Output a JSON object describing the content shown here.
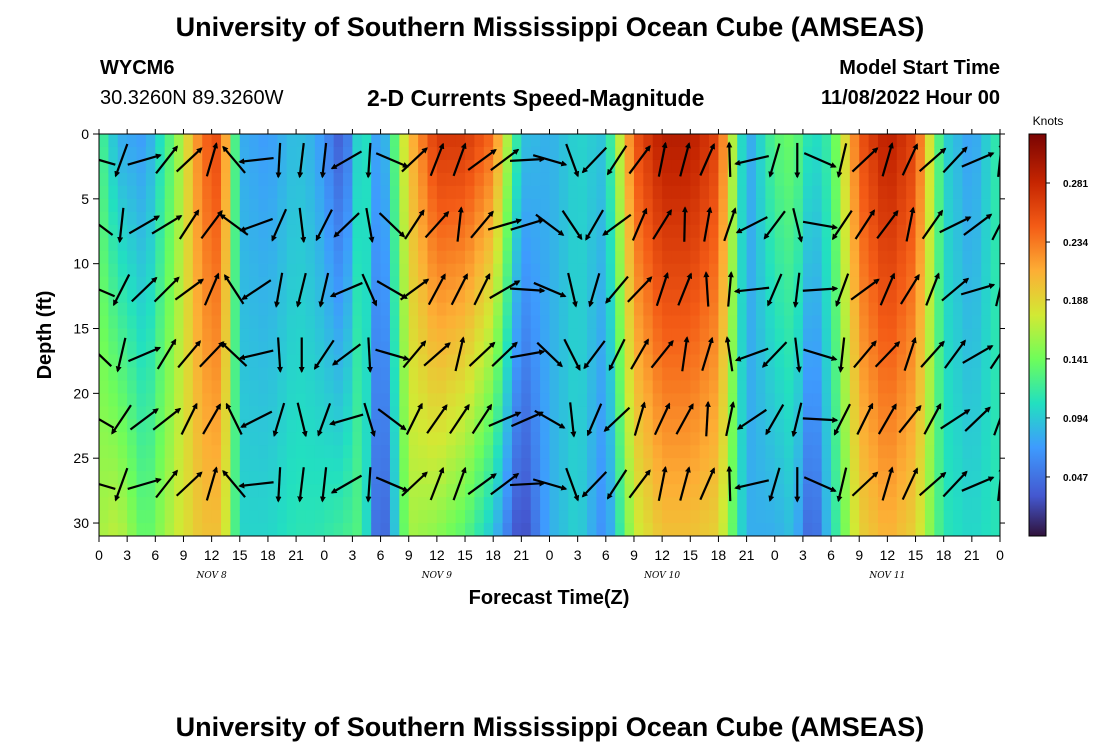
{
  "page": {
    "title_top": "University of Southern Mississippi Ocean Cube (AMSEAS)",
    "title_bottom": "University of Southern Mississippi Ocean Cube (AMSEAS)",
    "station_id": "WYCM6",
    "station_coords": "30.3260N  89.3260W",
    "model_label": "Model Start Time",
    "model_time": "11/08/2022 Hour 00"
  },
  "chart_data": {
    "type": "heatmap",
    "title": "2-D Currents Speed-Magnitude",
    "xlabel": "Forecast Time(Z)",
    "ylabel": "Depth (ft)",
    "x_range_hours": [
      0,
      96
    ],
    "y_range_ft": [
      0,
      31
    ],
    "x_tick_labels": [
      "0",
      "3",
      "6",
      "9",
      "12",
      "15",
      "18",
      "21",
      "0",
      "3",
      "6",
      "9",
      "12",
      "15",
      "18",
      "21",
      "0",
      "3",
      "6",
      "9",
      "12",
      "15",
      "18",
      "21",
      "0",
      "3",
      "6",
      "9",
      "12",
      "15",
      "18",
      "21",
      "0"
    ],
    "y_ticks": [
      0,
      5,
      10,
      15,
      20,
      25,
      30
    ],
    "y_tick_labels": [
      "0",
      "5",
      "10",
      "15",
      "20",
      "25",
      "30"
    ],
    "day_labels": [
      {
        "hour": 12,
        "label": "NOV 8"
      },
      {
        "hour": 36,
        "label": "NOV 9"
      },
      {
        "hour": 60,
        "label": "NOV 10"
      },
      {
        "hour": 84,
        "label": "NOV 11"
      }
    ],
    "colorbar": {
      "unit": "Knots",
      "min": 0.0,
      "max": 0.32,
      "tick_values": [
        0.047,
        0.094,
        0.141,
        0.188,
        0.234,
        0.281
      ],
      "tick_labels": [
        "0.047",
        "0.094",
        "0.141",
        "0.188",
        "0.234",
        "0.281"
      ]
    },
    "speed_profile_by_hour": [
      {
        "hour": 0,
        "surface": 0.13,
        "bottom": 0.16
      },
      {
        "hour": 2,
        "surface": 0.08,
        "bottom": 0.17
      },
      {
        "hour": 5,
        "surface": 0.07,
        "bottom": 0.13
      },
      {
        "hour": 8,
        "surface": 0.14,
        "bottom": 0.17
      },
      {
        "hour": 11,
        "surface": 0.24,
        "bottom": 0.2
      },
      {
        "hour": 13,
        "surface": 0.26,
        "bottom": 0.2
      },
      {
        "hour": 15,
        "surface": 0.08,
        "bottom": 0.1
      },
      {
        "hour": 18,
        "surface": 0.07,
        "bottom": 0.1
      },
      {
        "hour": 21,
        "surface": 0.09,
        "bottom": 0.11
      },
      {
        "hour": 23,
        "surface": 0.08,
        "bottom": 0.11
      },
      {
        "hour": 26,
        "surface": 0.03,
        "bottom": 0.12
      },
      {
        "hour": 28,
        "surface": 0.12,
        "bottom": 0.13
      },
      {
        "hour": 30,
        "surface": 0.06,
        "bottom": 0.02
      },
      {
        "hour": 33,
        "surface": 0.2,
        "bottom": 0.16
      },
      {
        "hour": 36,
        "surface": 0.27,
        "bottom": 0.15
      },
      {
        "hour": 39,
        "surface": 0.27,
        "bottom": 0.13
      },
      {
        "hour": 42,
        "surface": 0.24,
        "bottom": 0.09
      },
      {
        "hour": 45,
        "surface": 0.09,
        "bottom": 0.02
      },
      {
        "hour": 48,
        "surface": 0.08,
        "bottom": 0.08
      },
      {
        "hour": 51,
        "surface": 0.1,
        "bottom": 0.1
      },
      {
        "hour": 54,
        "surface": 0.09,
        "bottom": 0.06
      },
      {
        "hour": 57,
        "surface": 0.25,
        "bottom": 0.17
      },
      {
        "hour": 60,
        "surface": 0.29,
        "bottom": 0.2
      },
      {
        "hour": 63,
        "surface": 0.29,
        "bottom": 0.2
      },
      {
        "hour": 66,
        "surface": 0.26,
        "bottom": 0.19
      },
      {
        "hour": 69,
        "surface": 0.07,
        "bottom": 0.08
      },
      {
        "hour": 72,
        "surface": 0.13,
        "bottom": 0.08
      },
      {
        "hour": 74,
        "surface": 0.14,
        "bottom": 0.09
      },
      {
        "hour": 76,
        "surface": 0.1,
        "bottom": 0.03
      },
      {
        "hour": 78,
        "surface": 0.12,
        "bottom": 0.1
      },
      {
        "hour": 81,
        "surface": 0.25,
        "bottom": 0.19
      },
      {
        "hour": 84,
        "surface": 0.29,
        "bottom": 0.21
      },
      {
        "hour": 87,
        "surface": 0.26,
        "bottom": 0.19
      },
      {
        "hour": 90,
        "surface": 0.1,
        "bottom": 0.11
      },
      {
        "hour": 93,
        "surface": 0.07,
        "bottom": 0.1
      },
      {
        "hour": 96,
        "surface": 0.12,
        "bottom": 0.11
      }
    ],
    "vector_hours": [
      0,
      2.4,
      4.8,
      7.2,
      9.6,
      12,
      14.4,
      16.8,
      19.2,
      21.6,
      24,
      26.4,
      28.8,
      31.2,
      33.6,
      36,
      38.4,
      40.8,
      43.2,
      45.6,
      48,
      50.4,
      52.8,
      55.2,
      57.6,
      60,
      62.4,
      64.8,
      67.2,
      69.6,
      72,
      74.4,
      76.8,
      79.2,
      81.6,
      84,
      86.4,
      88.8,
      91.2,
      93.6,
      96
    ],
    "vector_depths_ft": [
      2,
      7,
      12,
      17,
      22,
      27
    ],
    "vector_direction_deg_by_hour": [
      300,
      200,
      60,
      45,
      40,
      30,
      320,
      250,
      190,
      180,
      200,
      240,
      170,
      120,
      40,
      35,
      20,
      40,
      60,
      80,
      120,
      160,
      210,
      220,
      30,
      25,
      15,
      10,
      5,
      250,
      210,
      180,
      100,
      200,
      40,
      30,
      25,
      35,
      50,
      60,
      20
    ]
  }
}
